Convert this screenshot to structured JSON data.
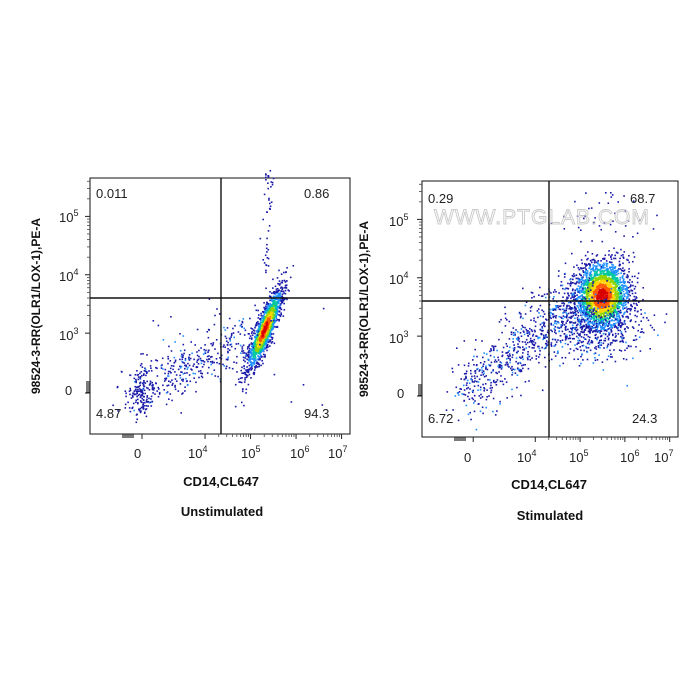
{
  "watermark": "WWW.PTGLAB.COM",
  "colors": {
    "low": "#1a1aa8",
    "mid1": "#1e90ff",
    "mid2": "#00c8a0",
    "mid3": "#8fd400",
    "high1": "#ffd700",
    "high2": "#ff5a00",
    "peak": "#d80000",
    "gate": "#111111"
  },
  "chart_data": [
    {
      "type": "scatter",
      "title": "Unstimulated",
      "xlabel": "CD14,CL647",
      "ylabel": "98524-3-RR(OLR1/LOX-1),PE-A",
      "x_scale": "biexponential",
      "y_scale": "biexponential",
      "x_ticks": [
        {
          "label": "0",
          "exp": ""
        },
        {
          "label": "10",
          "exp": "4"
        },
        {
          "label": "10",
          "exp": "5"
        },
        {
          "label": "10",
          "exp": "6"
        },
        {
          "label": "10",
          "exp": "7"
        }
      ],
      "y_ticks": [
        {
          "label": "0",
          "exp": ""
        },
        {
          "label": "10",
          "exp": "3"
        },
        {
          "label": "10",
          "exp": "4"
        },
        {
          "label": "10",
          "exp": "5"
        }
      ],
      "quadrant_gate": {
        "x": 30000,
        "y": 3500
      },
      "quadrants": {
        "upper_left": "0.011",
        "upper_right": "0.86",
        "lower_left": "4.87",
        "lower_right": "94.3"
      },
      "populations": [
        {
          "x_center": 200000,
          "y_center": 1200,
          "density": "high"
        },
        {
          "x_center": 30,
          "y_center": 40,
          "density": "low"
        }
      ]
    },
    {
      "type": "scatter",
      "title": "Stimulated",
      "xlabel": "CD14,CL647",
      "ylabel": "98524-3-RR(OLR1/LOX-1),PE-A",
      "x_scale": "biexponential",
      "y_scale": "biexponential",
      "x_ticks": [
        {
          "label": "0",
          "exp": ""
        },
        {
          "label": "10",
          "exp": "4"
        },
        {
          "label": "10",
          "exp": "5"
        },
        {
          "label": "10",
          "exp": "6"
        },
        {
          "label": "10",
          "exp": "7"
        }
      ],
      "y_ticks": [
        {
          "label": "0",
          "exp": ""
        },
        {
          "label": "10",
          "exp": "3"
        },
        {
          "label": "10",
          "exp": "4"
        },
        {
          "label": "10",
          "exp": "5"
        }
      ],
      "quadrant_gate": {
        "x": 30000,
        "y": 3500
      },
      "quadrants": {
        "upper_left": "0.29",
        "upper_right": "68.7",
        "lower_left": "6.72",
        "lower_right": "24.3"
      },
      "populations": [
        {
          "x_center": 300000,
          "y_center": 5000,
          "density": "high"
        },
        {
          "x_center": 1000,
          "y_center": 500,
          "density": "low"
        }
      ]
    }
  ]
}
